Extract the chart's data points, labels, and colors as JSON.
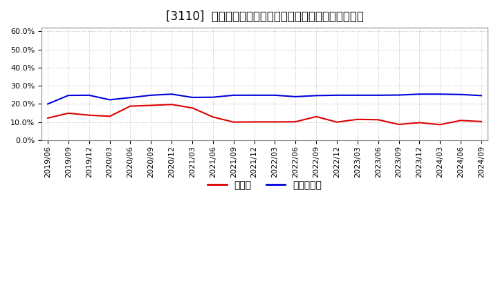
{
  "title": "[3110]  現頲金、有利子負債の総資産に対する比率の推移",
  "x_labels": [
    "2019/06",
    "2019/09",
    "2019/12",
    "2020/03",
    "2020/06",
    "2020/09",
    "2020/12",
    "2021/03",
    "2021/06",
    "2021/09",
    "2021/12",
    "2022/03",
    "2022/06",
    "2022/09",
    "2022/12",
    "2023/03",
    "2023/06",
    "2023/09",
    "2023/12",
    "2024/03",
    "2024/06",
    "2024/09"
  ],
  "cash": [
    0.122,
    0.149,
    0.138,
    0.132,
    0.188,
    0.192,
    0.197,
    0.178,
    0.128,
    0.1,
    0.101,
    0.101,
    0.102,
    0.13,
    0.1,
    0.115,
    0.113,
    0.087,
    0.097,
    0.086,
    0.109,
    0.103
  ],
  "debt": [
    0.2,
    0.247,
    0.248,
    0.223,
    0.235,
    0.248,
    0.254,
    0.236,
    0.237,
    0.248,
    0.248,
    0.248,
    0.24,
    0.246,
    0.248,
    0.248,
    0.248,
    0.249,
    0.254,
    0.254,
    0.252,
    0.246
  ],
  "cash_color": "#dd0000",
  "debt_color": "#0000dd",
  "background_color": "#ffffff",
  "grid_color": "#bbbbbb",
  "ylim": [
    0.0,
    0.62
  ],
  "yticks": [
    0.0,
    0.1,
    0.2,
    0.3,
    0.4,
    0.5,
    0.6
  ],
  "legend_cash": "現頲金",
  "legend_debt": "有利子負債",
  "title_fontsize": 12,
  "tick_fontsize": 8,
  "legend_fontsize": 10
}
